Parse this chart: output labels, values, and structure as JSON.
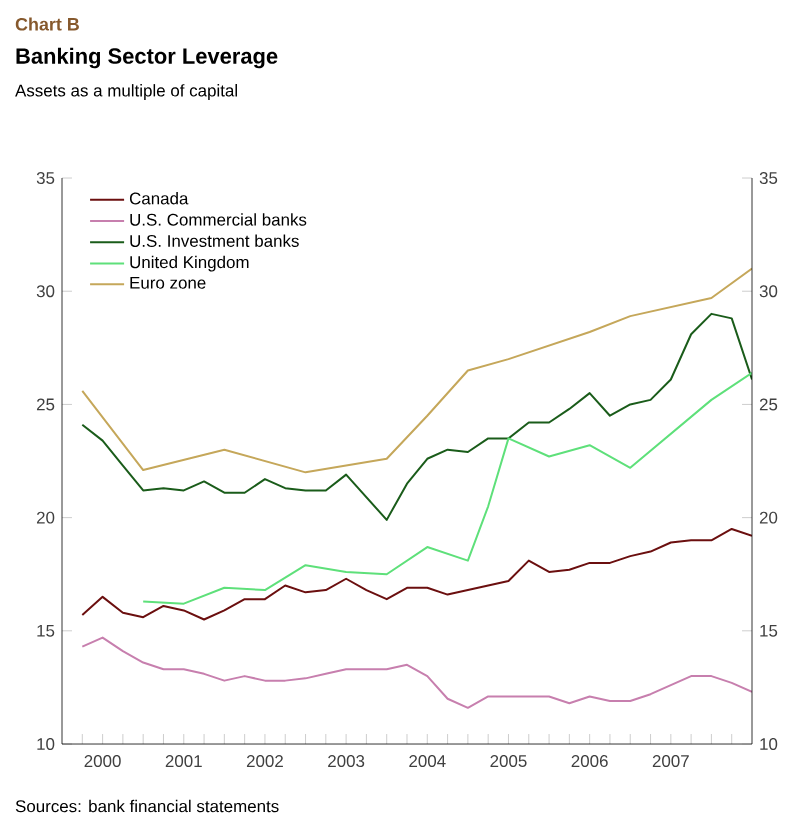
{
  "chart_data": {
    "type": "line",
    "title": "Banking Sector Leverage",
    "subtitle": "Assets as a multiple of capital",
    "annotations": [
      "Chart B",
      "Sources: bank financial statements"
    ],
    "x": [
      2000.25,
      2000.5,
      2000.75,
      2001.0,
      2001.25,
      2001.5,
      2001.75,
      2002.0,
      2002.25,
      2002.5,
      2002.75,
      2003.0,
      2003.25,
      2003.5,
      2003.75,
      2004.0,
      2004.25,
      2004.5,
      2004.75,
      2005.0,
      2005.25,
      2005.5,
      2005.75,
      2006.0,
      2006.25,
      2006.5,
      2006.75,
      2007.0,
      2007.25,
      2007.5,
      2007.75,
      2008.0,
      2008.25,
      2008.5
    ],
    "xlim": [
      2000,
      2008.5
    ],
    "xticks": [
      {
        "value": 2000.25,
        "label": null
      },
      {
        "value": 2000.5,
        "label": "2000"
      },
      {
        "value": 2000.75,
        "label": null
      },
      {
        "value": 2001.0,
        "label": null
      },
      {
        "value": 2001.25,
        "label": null
      },
      {
        "value": 2001.5,
        "label": "2001"
      },
      {
        "value": 2001.75,
        "label": null
      },
      {
        "value": 2002.0,
        "label": null
      },
      {
        "value": 2002.25,
        "label": null
      },
      {
        "value": 2002.5,
        "label": "2002"
      },
      {
        "value": 2002.75,
        "label": null
      },
      {
        "value": 2003.0,
        "label": null
      },
      {
        "value": 2003.25,
        "label": null
      },
      {
        "value": 2003.5,
        "label": "2003"
      },
      {
        "value": 2003.75,
        "label": null
      },
      {
        "value": 2004.0,
        "label": null
      },
      {
        "value": 2004.25,
        "label": null
      },
      {
        "value": 2004.5,
        "label": "2004"
      },
      {
        "value": 2004.75,
        "label": null
      },
      {
        "value": 2005.0,
        "label": null
      },
      {
        "value": 2005.25,
        "label": null
      },
      {
        "value": 2005.5,
        "label": "2005"
      },
      {
        "value": 2005.75,
        "label": null
      },
      {
        "value": 2006.0,
        "label": null
      },
      {
        "value": 2006.25,
        "label": null
      },
      {
        "value": 2006.5,
        "label": "2006"
      },
      {
        "value": 2006.75,
        "label": null
      },
      {
        "value": 2007.0,
        "label": null
      },
      {
        "value": 2007.25,
        "label": null
      },
      {
        "value": 2007.5,
        "label": "2007"
      },
      {
        "value": 2007.75,
        "label": null
      },
      {
        "value": 2008.0,
        "label": null
      },
      {
        "value": 2008.25,
        "label": null
      }
    ],
    "ylim": [
      10,
      35
    ],
    "yticks": [
      10,
      15,
      20,
      25,
      30,
      35
    ],
    "y2lim": [
      10,
      35
    ],
    "y2ticks": [
      10,
      15,
      20,
      25,
      30,
      35
    ],
    "legend": "top left",
    "series": [
      {
        "name": "Canada",
        "color": "#6b0f0f",
        "values": [
          15.7,
          16.5,
          15.8,
          15.6,
          16.1,
          15.9,
          15.5,
          15.9,
          16.4,
          16.4,
          17.0,
          16.7,
          16.8,
          17.3,
          16.8,
          16.4,
          16.9,
          16.9,
          16.6,
          16.8,
          17.0,
          17.2,
          18.1,
          17.6,
          17.7,
          18.0,
          18.0,
          18.3,
          18.5,
          18.9,
          19.0,
          19.0,
          19.5,
          19.2
        ]
      },
      {
        "name": "U.S. Commercial banks",
        "color": "#c77fae",
        "values": [
          14.3,
          14.7,
          14.1,
          13.6,
          13.3,
          13.3,
          13.1,
          12.8,
          13.0,
          12.8,
          12.8,
          12.9,
          13.1,
          13.3,
          13.3,
          13.3,
          13.5,
          13.0,
          12.0,
          11.6,
          12.1,
          12.1,
          12.1,
          12.1,
          11.8,
          12.1,
          11.9,
          11.9,
          12.2,
          12.6,
          13.0,
          13.0,
          12.7,
          12.3
        ]
      },
      {
        "name": "U.S. Investment banks",
        "color": "#1a5c1a",
        "values": [
          24.1,
          23.4,
          22.3,
          21.2,
          21.3,
          21.2,
          21.6,
          21.1,
          21.1,
          21.7,
          21.3,
          21.2,
          21.2,
          21.9,
          20.9,
          19.9,
          21.5,
          22.6,
          23.0,
          22.9,
          23.5,
          23.5,
          24.2,
          24.2,
          24.8,
          25.5,
          24.5,
          25.0,
          25.2,
          26.1,
          28.1,
          29.0,
          28.8,
          26.1
        ]
      },
      {
        "name": "United Kingdom",
        "color": "#5ee07a",
        "x": [
          2001.0,
          2001.5,
          2002.0,
          2002.5,
          2003.0,
          2003.5,
          2004.0,
          2004.5,
          2005.0,
          2005.25,
          2005.5,
          2006.0,
          2006.5,
          2007.0,
          2008.0,
          2008.5
        ],
        "values": [
          16.3,
          16.2,
          16.9,
          16.8,
          17.9,
          17.6,
          17.5,
          18.7,
          18.1,
          20.5,
          23.5,
          22.7,
          23.2,
          22.2,
          25.2,
          26.4
        ]
      },
      {
        "name": "Euro zone",
        "color": "#c5a75a",
        "x": [
          2000.25,
          2001.0,
          2002.0,
          2003.0,
          2004.0,
          2004.5,
          2005.0,
          2005.5,
          2006.0,
          2006.5,
          2007.0,
          2007.5,
          2008.0,
          2008.5
        ],
        "values": [
          25.6,
          22.1,
          23.0,
          22.0,
          22.6,
          24.5,
          26.5,
          27.0,
          27.6,
          28.2,
          28.9,
          29.3,
          29.7,
          31.0
        ]
      }
    ]
  }
}
